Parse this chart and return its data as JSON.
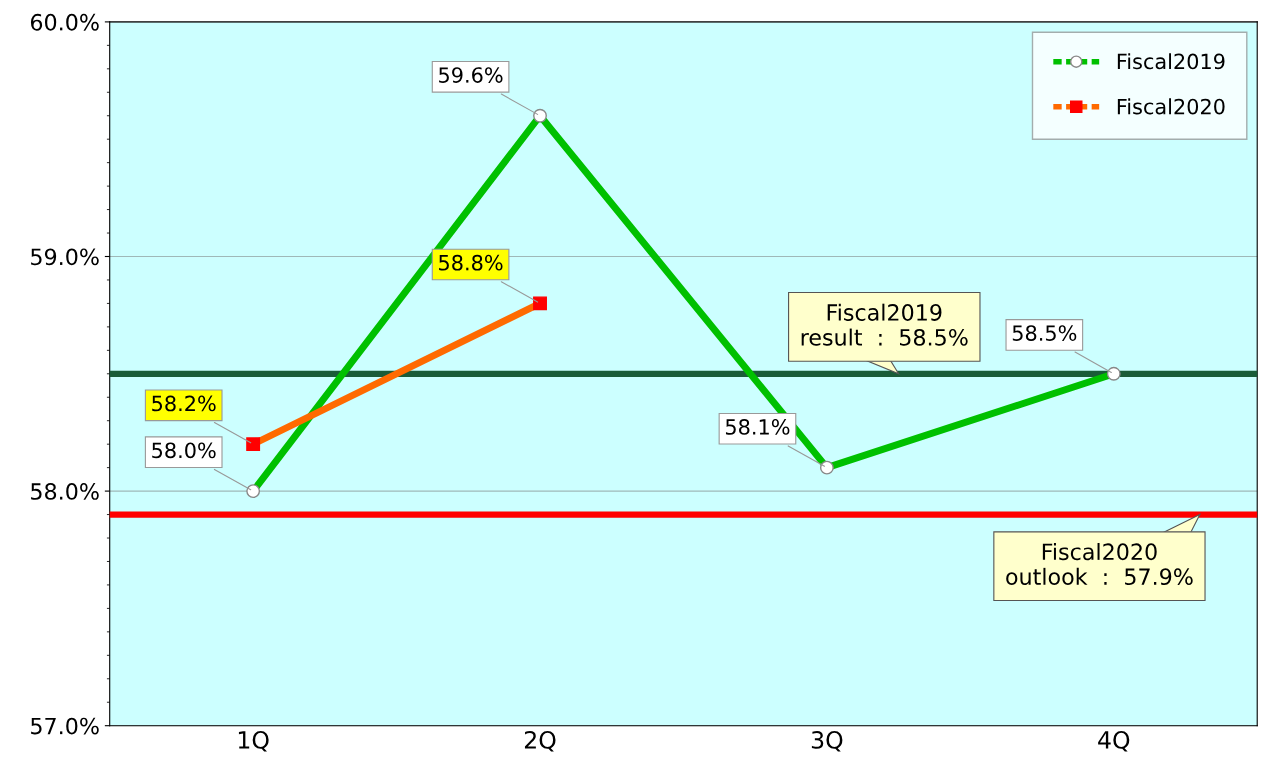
{
  "chart_data": {
    "type": "line",
    "categories": [
      "1Q",
      "2Q",
      "3Q",
      "4Q"
    ],
    "series": [
      {
        "name": "Fiscal2019",
        "color": "#00c000",
        "values": [
          58.0,
          59.6,
          58.1,
          58.5
        ],
        "value_labels": [
          "58.0%",
          "59.6%",
          "58.1%",
          "58.5%"
        ],
        "marker": "circle"
      },
      {
        "name": "Fiscal2020",
        "color": "#ff6a00",
        "values": [
          58.2,
          58.8,
          null,
          null
        ],
        "value_labels": [
          "58.2%",
          "58.8%",
          null,
          null
        ],
        "marker": "square"
      }
    ],
    "ylim": [
      57.0,
      60.0
    ],
    "yticks": [
      {
        "value": 57,
        "label": "57.0%"
      },
      {
        "value": 58,
        "label": "58.0%"
      },
      {
        "value": 59,
        "label": "59.0%"
      },
      {
        "value": 60,
        "label": "60.0%"
      }
    ],
    "grid": "y",
    "legend": "top right",
    "ref_lines": [
      {
        "axis": "y",
        "value": 58.5,
        "label": "Fiscal2019\nresult  :  58.5%",
        "color": "#1a5c38"
      },
      {
        "axis": "y",
        "value": 57.9,
        "label": "Fiscal2020\noutlook  :  57.9%",
        "color": "#ff0000"
      }
    ]
  }
}
